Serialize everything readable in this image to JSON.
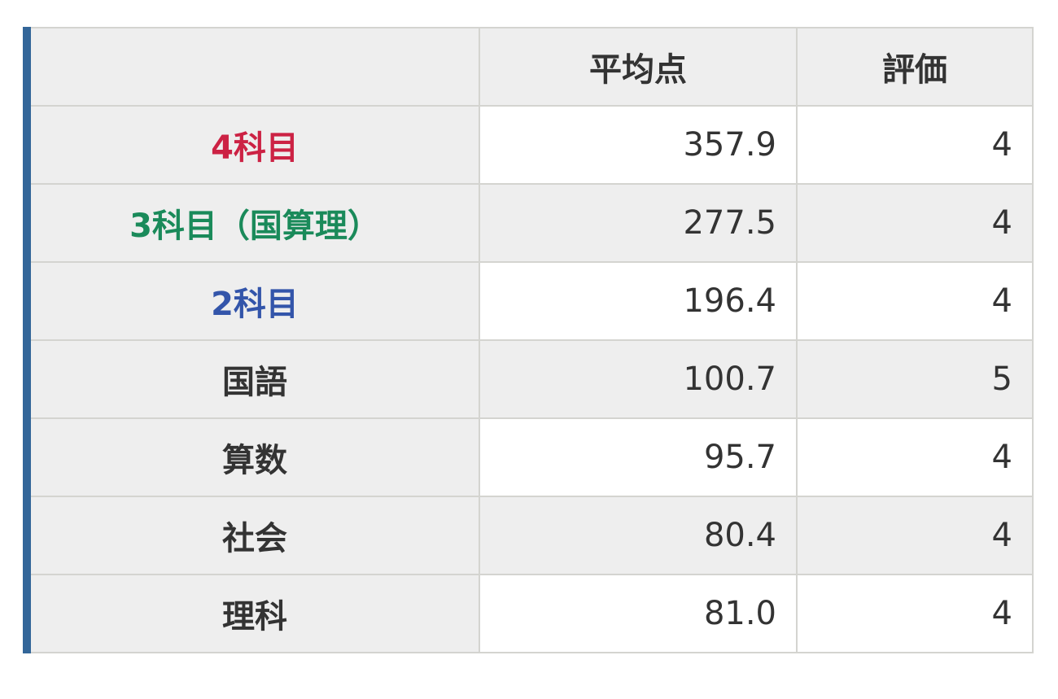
{
  "header": {
    "col1": "",
    "col2": "平均点",
    "col3": "評価"
  },
  "colors": {
    "border_accent": "#336699",
    "red": "#cc2244",
    "green": "#1a8a5a",
    "blue": "#3355aa"
  },
  "rows": [
    {
      "label": "4科目",
      "avg": "357.9",
      "grade": "4",
      "color": "#cc2244"
    },
    {
      "label": "3科目（国算理）",
      "avg": "277.5",
      "grade": "4",
      "color": "#1a8a5a"
    },
    {
      "label": "2科目",
      "avg": "196.4",
      "grade": "4",
      "color": "#3355aa"
    },
    {
      "label": "国語",
      "avg": "100.7",
      "grade": "5",
      "color": "#333333"
    },
    {
      "label": "算数",
      "avg": "95.7",
      "grade": "4",
      "color": "#333333"
    },
    {
      "label": "社会",
      "avg": "80.4",
      "grade": "4",
      "color": "#333333"
    },
    {
      "label": "理科",
      "avg": "81.0",
      "grade": "4",
      "color": "#333333"
    }
  ]
}
